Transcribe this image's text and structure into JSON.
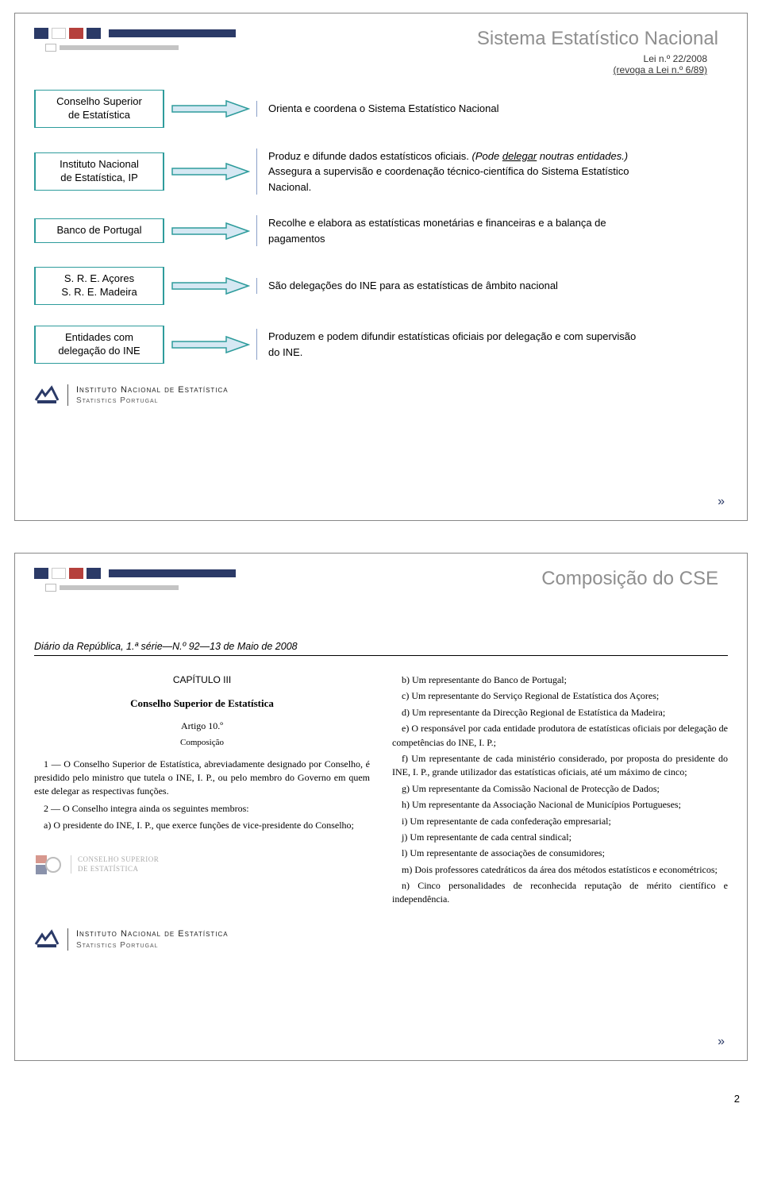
{
  "page_number": "2",
  "pager_glyph": "»",
  "ine_logo": {
    "line1": "Instituto Nacional de Estatística",
    "line2": "Statistics Portugal"
  },
  "slide1": {
    "title": "Sistema Estatístico Nacional",
    "subtitle_line1": "Lei n.º 22/2008",
    "subtitle_line2": "(revoga a Lei n.º 6/89)",
    "arrow_stroke": "#2e9c9c",
    "arrow_fill": "#d5e8f3",
    "rows": [
      {
        "entity": "Conselho Superior de Estatística",
        "desc": "Orienta e coordena o Sistema Estatístico Nacional"
      },
      {
        "entity": "Instituto Nacional de Estatística, IP",
        "desc": "Produz e difunde dados estatísticos oficiais. <em>(Pode <span class=\"underline-word\">delegar</span> noutras entidades.)</em> Assegura a supervisão e coordenação técnico-científica do Sistema Estatístico Nacional."
      },
      {
        "entity": "Banco de Portugal",
        "desc": "Recolhe e elabora as estatísticas monetárias e financeiras e a balança de pagamentos"
      },
      {
        "entity": "S. R. E. Açores<br>S. R. E. Madeira",
        "desc": "São delegações do INE para as estatísticas de âmbito nacional"
      },
      {
        "entity": "Entidades com delegação do INE",
        "desc": "Produzem e podem difundir estatísticas oficiais por delegação e com supervisão do INE."
      }
    ]
  },
  "slide2": {
    "title": "Composição do CSE",
    "diario_header": "Diário da República, 1.ª série—N.º 92—13 de Maio de 2008",
    "left_col": {
      "chapter": "CAPÍTULO III",
      "section_title": "Conselho Superior de Estatística",
      "artigo": "Artigo 10.º",
      "artigo_sub": "Composição",
      "p1": "1 — O Conselho Superior de Estatística, abreviadamente designado por Conselho, é presidido pelo ministro que tutela o INE, I. P., ou pelo membro do Governo em quem este delegar as respectivas funções.",
      "p2": "2 — O Conselho integra ainda os seguintes membros:",
      "item_a": "a) O presidente do INE, I. P., que exerce funções de vice-presidente do Conselho;"
    },
    "right_col": {
      "items": [
        "b) Um representante do Banco de Portugal;",
        "c) Um representante do Serviço Regional de Estatística dos Açores;",
        "d) Um representante da Direcção Regional de Estatística da Madeira;",
        "e) O responsável por cada entidade produtora de estatísticas oficiais por delegação de competências do INE, I. P.;",
        "f) Um representante de cada ministério considerado, por proposta do presidente do INE, I. P., grande utilizador das estatísticas oficiais, até um máximo de cinco;",
        "g) Um representante da Comissão Nacional de Protecção de Dados;",
        "h) Um representante da Associação Nacional de Municípios Portugueses;",
        "i) Um representante de cada confederação empresarial;",
        "j) Um representante de cada central sindical;",
        "l) Um representante de associações de consumidores;",
        "m) Dois professores catedráticos da área dos métodos estatísticos e econométricos;",
        "n) Cinco personalidades de reconhecida reputação de mérito científico e independência."
      ]
    },
    "cse_badge": {
      "line1": "CONSELHO SUPERIOR",
      "line2": "DE ESTATÍSTICA"
    }
  },
  "colors": {
    "navy": "#2b3a67",
    "red": "#b5403c",
    "title_gray": "#8f8f8f",
    "box_border": "#2e9c9c",
    "desc_border": "#8aa0c8"
  }
}
